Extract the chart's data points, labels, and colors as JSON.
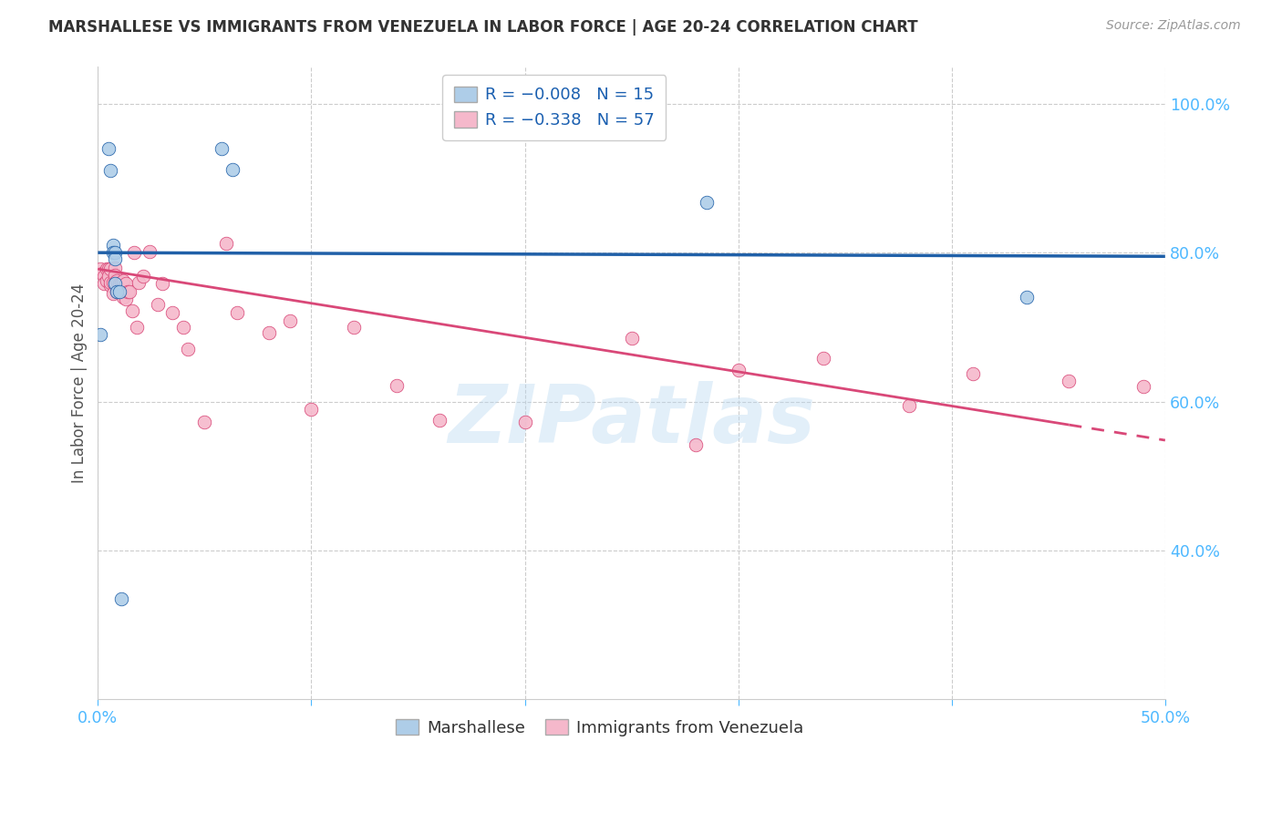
{
  "title": "MARSHALLESE VS IMMIGRANTS FROM VENEZUELA IN LABOR FORCE | AGE 20-24 CORRELATION CHART",
  "source": "Source: ZipAtlas.com",
  "ylabel": "In Labor Force | Age 20-24",
  "x_min": 0.0,
  "x_max": 0.5,
  "y_min": 0.2,
  "y_max": 1.05,
  "y_ticks": [
    0.4,
    0.6,
    0.8,
    1.0
  ],
  "blue_color": "#aecde8",
  "pink_color": "#f5b8cb",
  "line_blue_color": "#2060a8",
  "line_pink_color": "#d94878",
  "watermark": "ZIPatlas",
  "blue_points_x": [
    0.001,
    0.005,
    0.006,
    0.007,
    0.007,
    0.008,
    0.008,
    0.008,
    0.009,
    0.01,
    0.011,
    0.058,
    0.063,
    0.285,
    0.435
  ],
  "blue_points_y": [
    0.69,
    0.94,
    0.91,
    0.81,
    0.8,
    0.8,
    0.792,
    0.758,
    0.748,
    0.748,
    0.335,
    0.94,
    0.912,
    0.868,
    0.74
  ],
  "pink_points_x": [
    0.001,
    0.002,
    0.003,
    0.003,
    0.004,
    0.004,
    0.005,
    0.005,
    0.006,
    0.006,
    0.006,
    0.007,
    0.007,
    0.008,
    0.008,
    0.008,
    0.009,
    0.009,
    0.01,
    0.01,
    0.011,
    0.011,
    0.012,
    0.012,
    0.013,
    0.013,
    0.014,
    0.015,
    0.016,
    0.017,
    0.018,
    0.019,
    0.021,
    0.024,
    0.028,
    0.03,
    0.035,
    0.04,
    0.042,
    0.05,
    0.06,
    0.065,
    0.08,
    0.09,
    0.1,
    0.12,
    0.14,
    0.16,
    0.2,
    0.25,
    0.28,
    0.3,
    0.34,
    0.38,
    0.41,
    0.455,
    0.49
  ],
  "pink_points_y": [
    0.778,
    0.772,
    0.768,
    0.758,
    0.778,
    0.762,
    0.778,
    0.768,
    0.778,
    0.756,
    0.76,
    0.76,
    0.745,
    0.78,
    0.77,
    0.76,
    0.762,
    0.748,
    0.758,
    0.75,
    0.76,
    0.748,
    0.762,
    0.74,
    0.758,
    0.738,
    0.748,
    0.748,
    0.722,
    0.8,
    0.7,
    0.76,
    0.768,
    0.802,
    0.73,
    0.758,
    0.72,
    0.7,
    0.67,
    0.572,
    0.812,
    0.72,
    0.692,
    0.708,
    0.59,
    0.7,
    0.622,
    0.575,
    0.572,
    0.685,
    0.542,
    0.642,
    0.658,
    0.595,
    0.638,
    0.628,
    0.62
  ],
  "blue_line_x0": 0.0,
  "blue_line_y0": 0.8,
  "blue_line_x1": 0.5,
  "blue_line_y1": 0.795,
  "pink_line_x0": 0.0,
  "pink_line_y0": 0.778,
  "pink_line_x1": 0.5,
  "pink_line_y1": 0.548
}
